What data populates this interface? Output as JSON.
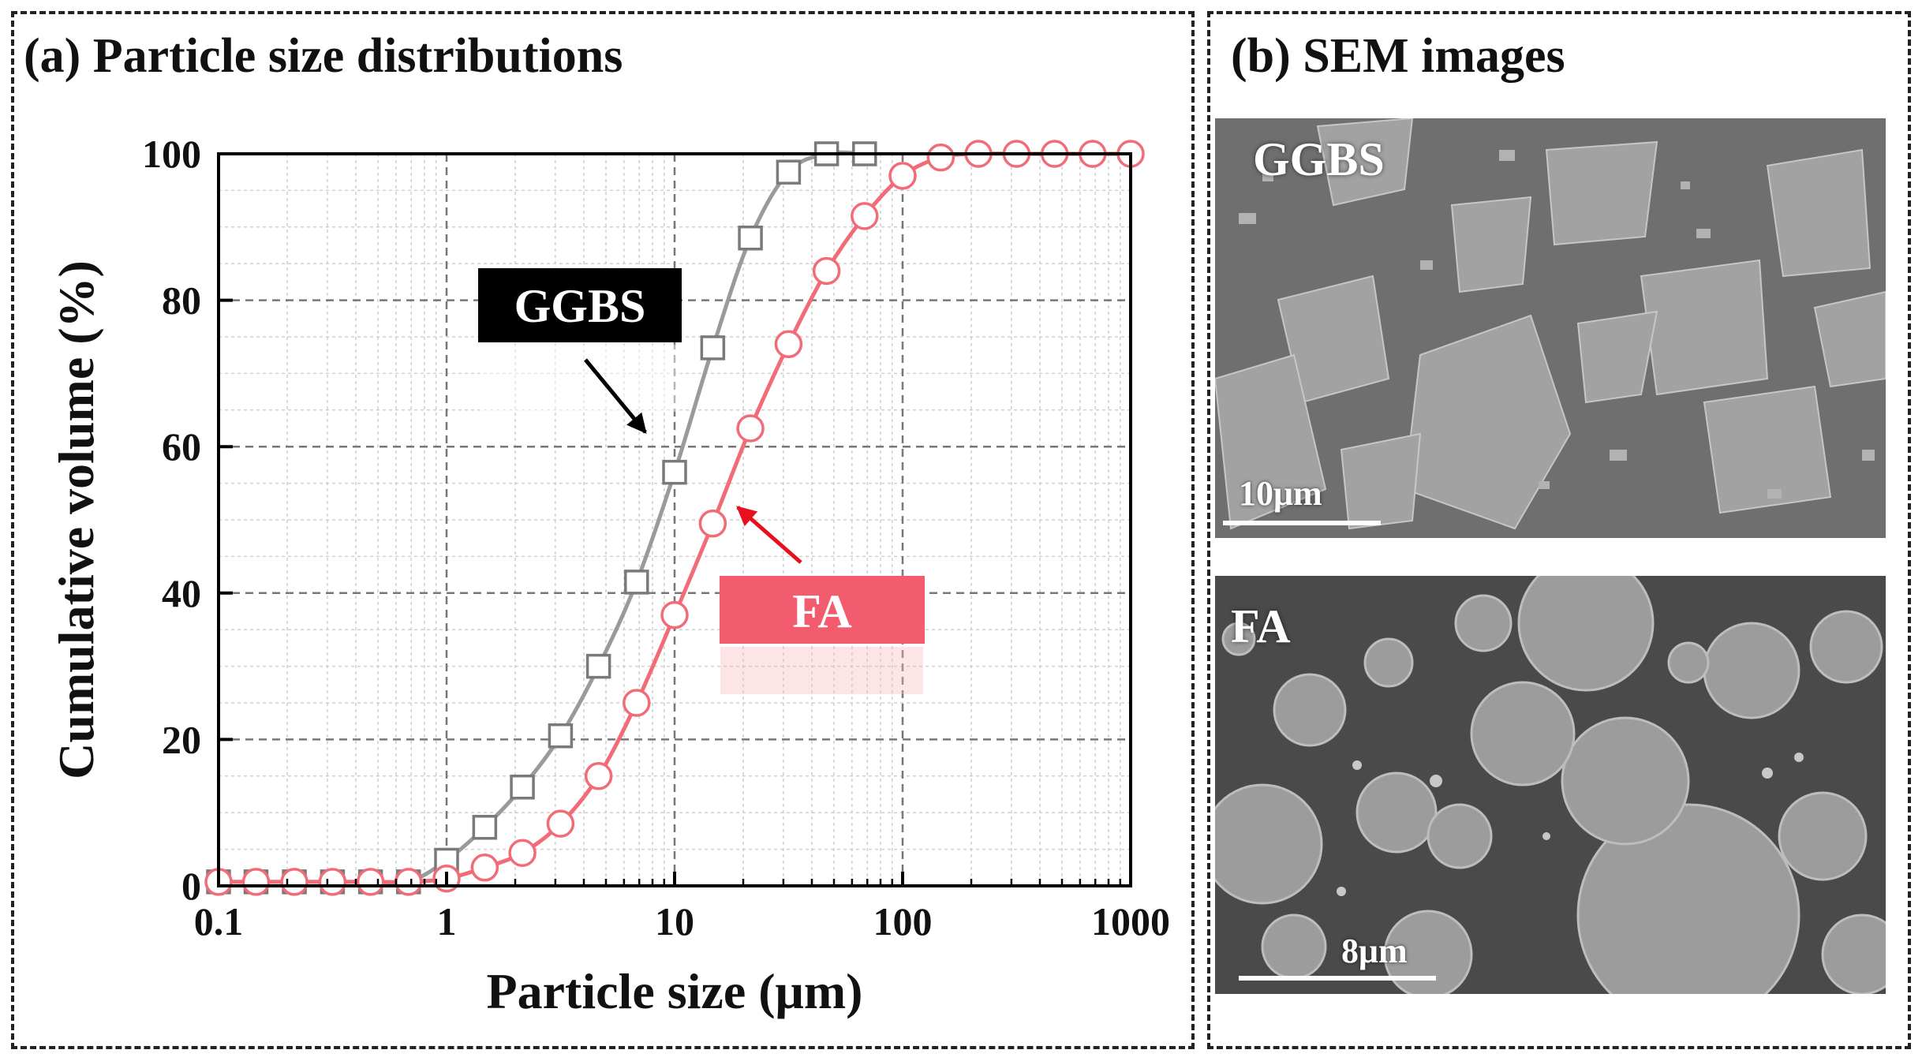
{
  "panel_a": {
    "title": "(a) Particle size distributions"
  },
  "panel_b": {
    "title": "(b) SEM images",
    "images": [
      {
        "label": "GGBS",
        "scale_bar": "10μm"
      },
      {
        "label": "FA",
        "scale_bar": "8μm"
      }
    ]
  },
  "colors": {
    "ggbs": "#9a9a9a",
    "fa": "#f26c78",
    "fa_box": "#f25c6e",
    "ggbs_box": "#000000"
  },
  "chart_data": {
    "type": "line",
    "xscale": "log",
    "xlabel": "Particle size (μm)",
    "ylabel": "Cumulative volume (%)",
    "xlim": [
      0.1,
      1000
    ],
    "ylim": [
      0,
      100
    ],
    "xticks": [
      0.1,
      1,
      10,
      100,
      1000
    ],
    "xtick_labels": [
      "0.1",
      "1",
      "10",
      "100",
      "1000"
    ],
    "yticks": [
      0,
      20,
      40,
      60,
      80,
      100
    ],
    "ytick_labels": [
      "0",
      "20",
      "40",
      "60",
      "80",
      "100"
    ],
    "grid": true,
    "series": [
      {
        "name": "GGBS",
        "marker": "square",
        "x": [
          0.1,
          0.146,
          0.215,
          0.316,
          0.464,
          0.681,
          1.0,
          1.47,
          2.15,
          3.16,
          4.64,
          6.81,
          10.0,
          14.7,
          21.5,
          31.6,
          46.4,
          68.1
        ],
        "y": [
          0,
          0,
          0,
          0,
          0,
          0.5,
          3.5,
          8.0,
          13.5,
          20.5,
          30.0,
          41.5,
          56.5,
          73.5,
          88.5,
          97.5,
          100,
          100
        ]
      },
      {
        "name": "FA",
        "marker": "circle",
        "x": [
          0.1,
          0.146,
          0.215,
          0.316,
          0.464,
          0.681,
          1.0,
          1.47,
          2.15,
          3.16,
          4.64,
          6.81,
          10.0,
          14.7,
          21.5,
          31.6,
          46.4,
          68.1,
          100,
          147,
          215,
          316,
          464,
          681,
          1000
        ],
        "y": [
          0,
          0,
          0,
          0,
          0,
          0,
          1.0,
          2.5,
          4.5,
          8.5,
          15.0,
          25.0,
          37.0,
          49.5,
          62.5,
          74.0,
          84.0,
          91.5,
          97.0,
          99.5,
          100,
          100,
          100,
          100,
          100
        ]
      }
    ],
    "annotations": [
      {
        "text": "GGBS",
        "style": "black box, white text",
        "points_to": "GGBS curve near 60%"
      },
      {
        "text": "FA",
        "style": "red box, white text",
        "points_to": "FA curve near 50%"
      }
    ]
  }
}
